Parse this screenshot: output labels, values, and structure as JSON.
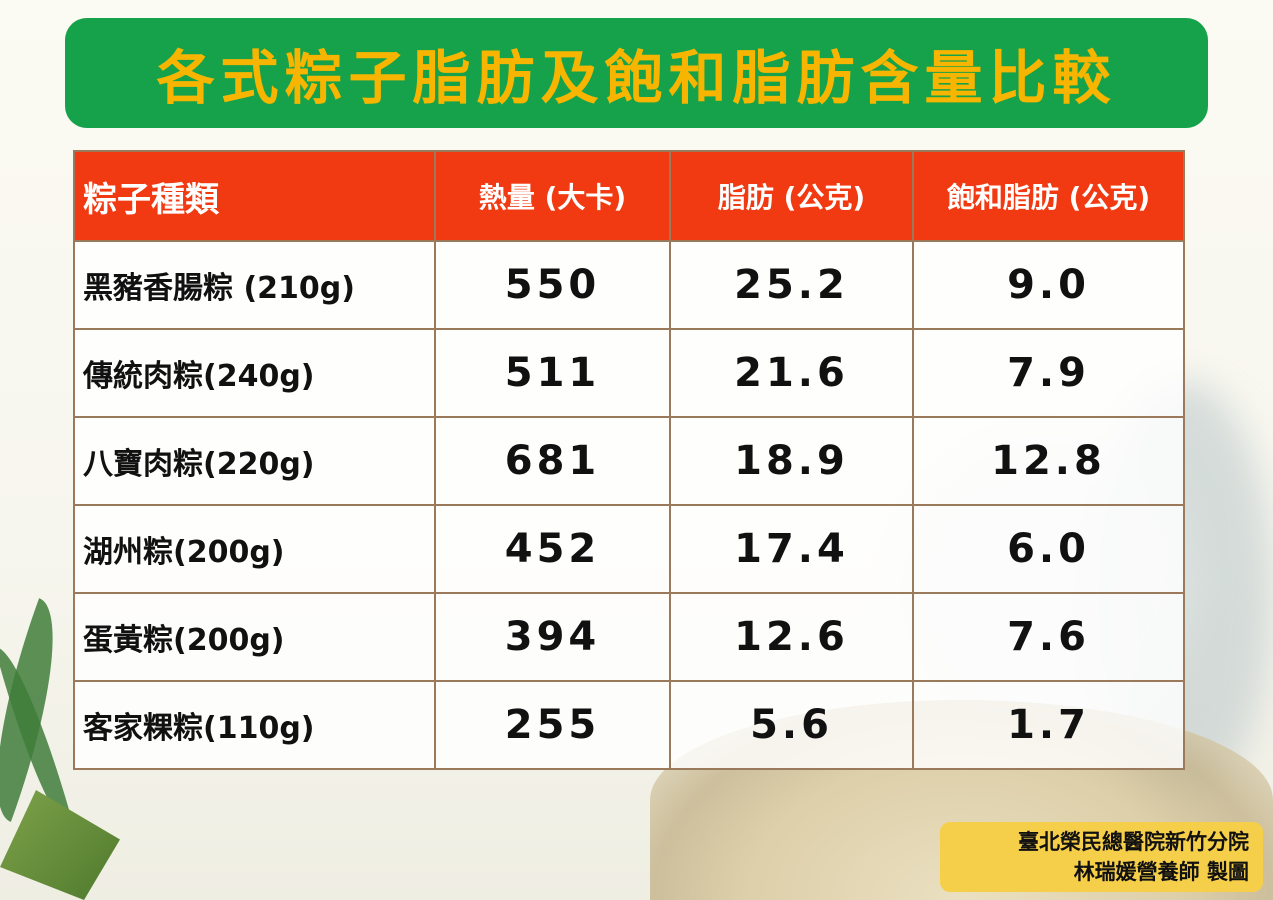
{
  "title": "各式粽子脂肪及飽和脂肪含量比較",
  "colors": {
    "title_bg": "#15a24a",
    "title_text": "#f7b500",
    "header_bg": "#f23a12",
    "credit_bg": "#f6cf4a"
  },
  "table": {
    "headers": [
      "粽子種類",
      "熱量 (大卡)",
      "脂肪 (公克)",
      "飽和脂肪 (公克)"
    ],
    "rows": [
      [
        "黑豬香腸粽 (210g)",
        "550",
        "25.2",
        "9.0"
      ],
      [
        "傳統肉粽(240g)",
        "511",
        "21.6",
        "7.9"
      ],
      [
        "八寶肉粽(220g)",
        "681",
        "18.9",
        "12.8"
      ],
      [
        "湖州粽(200g)",
        "452",
        "17.4",
        "6.0"
      ],
      [
        "蛋黃粽(200g)",
        "394",
        "12.6",
        "7.6"
      ],
      [
        "客家粿粽(110g)",
        "255",
        "5.6",
        "1.7"
      ]
    ]
  },
  "credit": {
    "line1": "臺北榮民總醫院新竹分院",
    "line2": "林瑞媛營養師 製圖"
  }
}
